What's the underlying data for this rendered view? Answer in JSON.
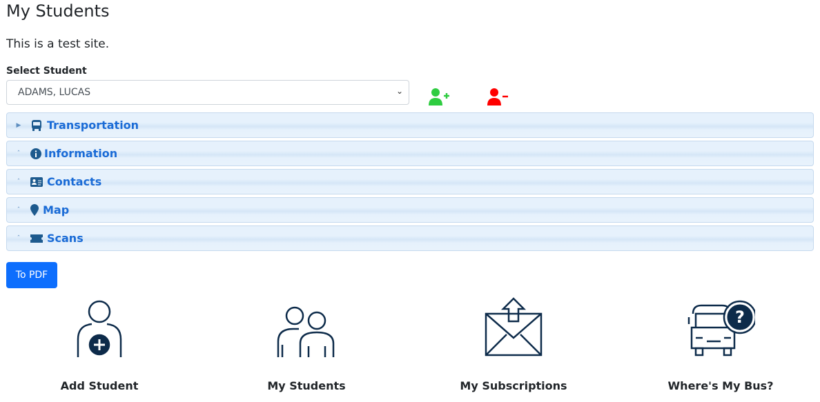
{
  "page": {
    "title": "My Students",
    "notice": "This is a test site."
  },
  "select": {
    "label": "Select Student",
    "value": "ADAMS, LUCAS"
  },
  "actions": {
    "add_color": "#2ecc40",
    "remove_color": "#ff0000"
  },
  "accordion": [
    {
      "label": "Transportation",
      "icon": "bus-icon",
      "expanded": false
    },
    {
      "label": "Information",
      "icon": "info-circle-icon",
      "expanded": true
    },
    {
      "label": "Contacts",
      "icon": "id-card-icon",
      "expanded": true
    },
    {
      "label": "Map",
      "icon": "map-marker-icon",
      "expanded": true
    },
    {
      "label": "Scans",
      "icon": "ticket-icon",
      "expanded": true
    }
  ],
  "pdf_button": "To PDF",
  "tiles": [
    {
      "label": "Add Student"
    },
    {
      "label": "My Students"
    },
    {
      "label": "My Subscriptions"
    },
    {
      "label": "Where's My Bus?"
    }
  ],
  "colors": {
    "accent": "#0d6efd",
    "heading": "#1a6bd6",
    "icon": "#0d2b4a"
  }
}
